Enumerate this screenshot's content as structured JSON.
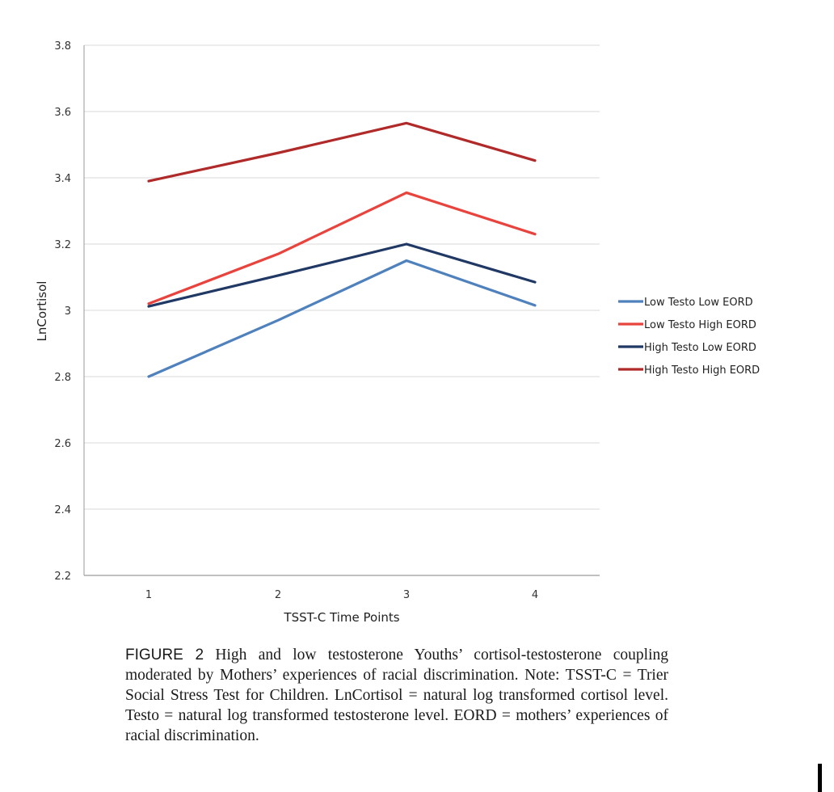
{
  "chart_data": {
    "type": "line",
    "x": [
      1,
      2,
      3,
      4
    ],
    "xlabel": "TSST-C Time Points",
    "ylabel": "LnCortisol",
    "ylim": [
      2.2,
      3.8
    ],
    "yticks": [
      2.2,
      2.4,
      2.6,
      2.8,
      3,
      3.2,
      3.4,
      3.6,
      3.8
    ],
    "ytick_labels": [
      "2.2",
      "2.4",
      "2.6",
      "2.8",
      "3",
      "3.2",
      "3.4",
      "3.6",
      "3.8"
    ],
    "xtick_labels": [
      "1",
      "2",
      "3",
      "4"
    ],
    "grid": "horizontal",
    "legend": "right",
    "series": [
      {
        "name": "Low Testo Low EORD",
        "values": [
          2.8,
          2.97,
          3.15,
          3.015
        ],
        "color": "#4f81bd"
      },
      {
        "name": "Low Testo High EORD",
        "values": [
          3.02,
          3.17,
          3.355,
          3.23
        ],
        "color": "#e8433d"
      },
      {
        "name": "High Testo Low EORD",
        "values": [
          3.012,
          3.105,
          3.2,
          3.085
        ],
        "color": "#1f3864"
      },
      {
        "name": "High Testo High EORD",
        "values": [
          3.39,
          3.475,
          3.565,
          3.452
        ],
        "color": "#b02a2a"
      }
    ]
  },
  "caption": {
    "label": "FIGURE 2",
    "text": "High and low testosterone Youths’ cortisol-testosterone coupling moderated by Mothers’ experiences of racial discrimination. Note: TSST-C = Trier Social Stress Test for Children. LnCortisol = natural log transformed cortisol level. Testo = natural log transformed testosterone level. EORD = mothers’ experiences of racial discrimination."
  }
}
